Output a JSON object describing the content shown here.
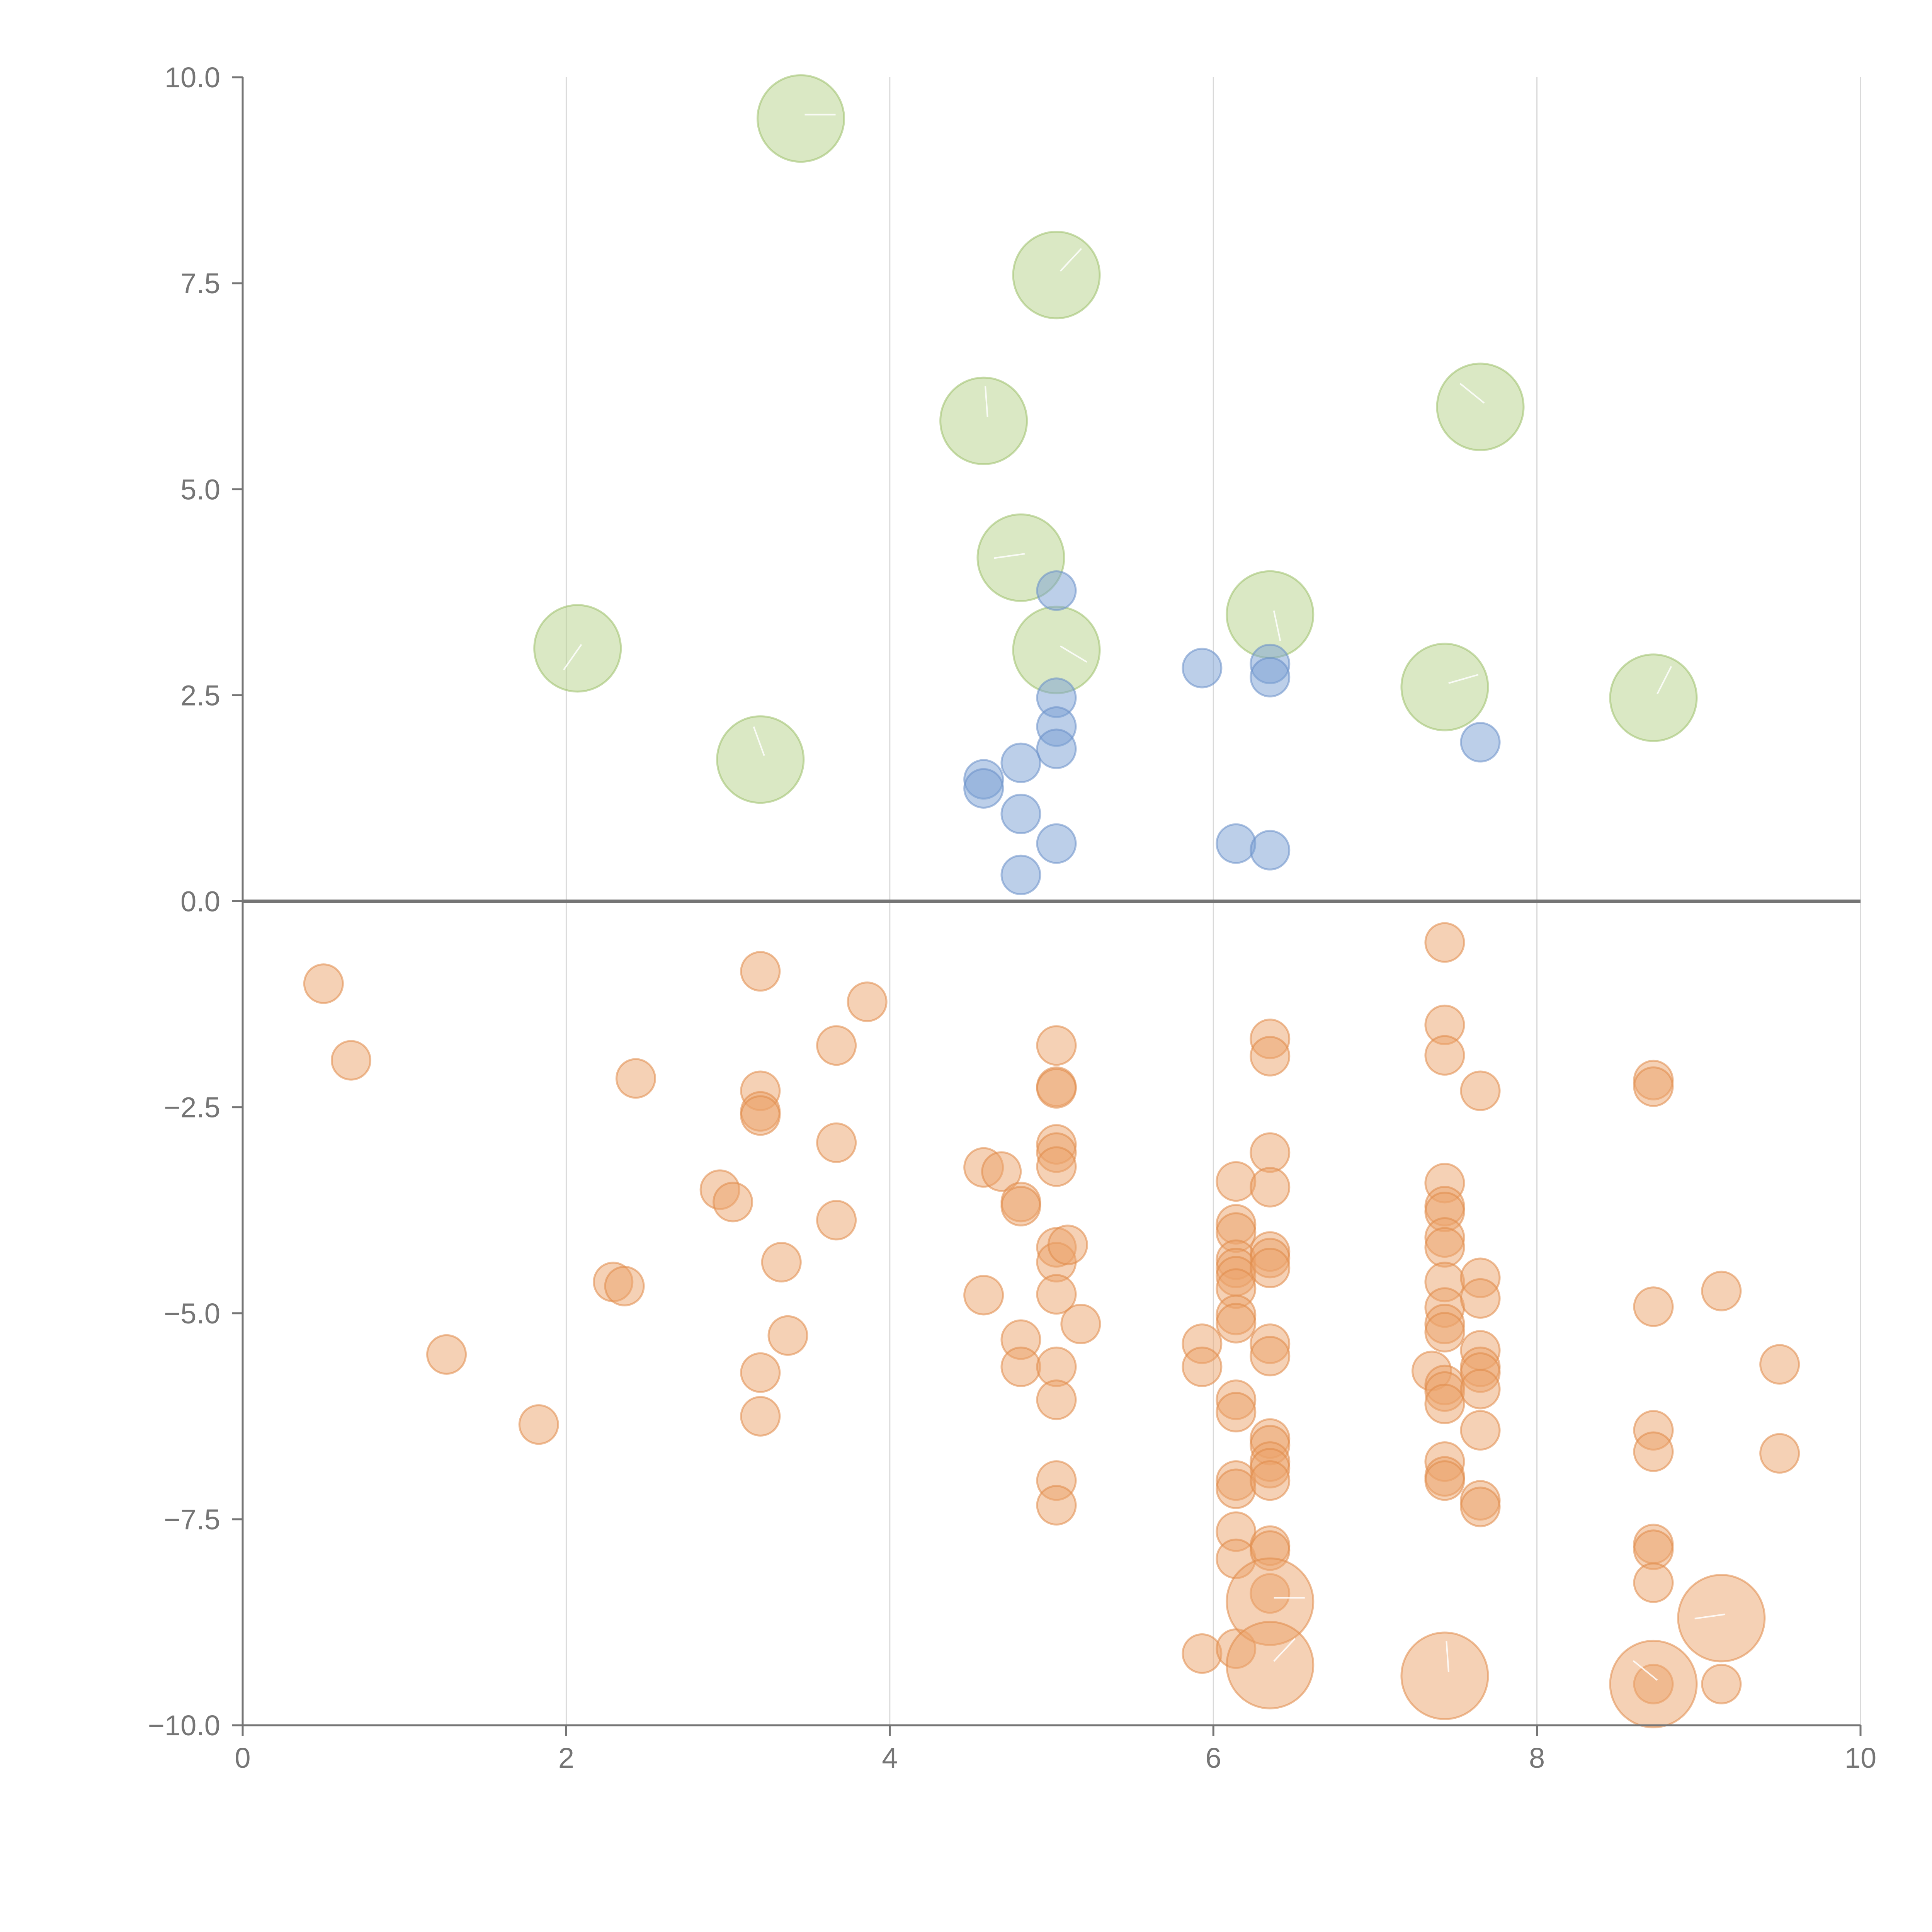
{
  "chart_data": {
    "type": "scatter",
    "title": "",
    "xlabel": "",
    "ylabel": "",
    "xlim": [
      0,
      10
    ],
    "ylim": [
      -10,
      10
    ],
    "x_ticks": [
      "0",
      "2",
      "4",
      "6",
      "8",
      "10"
    ],
    "y_ticks": [
      "−10.0",
      "−7.5",
      "−5.0",
      "−2.5",
      "0.0",
      "2.5",
      "5.0",
      "7.5",
      "10.0"
    ],
    "grid": "vertical",
    "legend": "none",
    "series": [
      {
        "name": "large-green",
        "color": "#b5d18a",
        "stroke": "#9cc06a",
        "size": "large",
        "points": [
          [
            3.45,
            9.5
          ],
          [
            5.03,
            7.6
          ],
          [
            4.58,
            5.83
          ],
          [
            7.65,
            6.0
          ],
          [
            4.81,
            4.17
          ],
          [
            2.07,
            3.07
          ],
          [
            6.35,
            3.48
          ],
          [
            5.03,
            3.05
          ],
          [
            7.43,
            2.6
          ],
          [
            8.72,
            2.47
          ],
          [
            3.2,
            1.72
          ]
        ]
      },
      {
        "name": "blue",
        "color": "#7a9fd4",
        "stroke": "#6a8fc9",
        "size": "small",
        "points": [
          [
            5.03,
            3.77
          ],
          [
            5.93,
            2.83
          ],
          [
            6.35,
            2.88
          ],
          [
            6.35,
            2.72
          ],
          [
            5.03,
            2.47
          ],
          [
            5.03,
            2.12
          ],
          [
            5.03,
            1.85
          ],
          [
            4.81,
            1.68
          ],
          [
            7.65,
            1.93
          ],
          [
            4.58,
            1.48
          ],
          [
            4.58,
            1.37
          ],
          [
            4.81,
            1.06
          ],
          [
            5.03,
            0.7
          ],
          [
            6.14,
            0.7
          ],
          [
            6.35,
            0.62
          ],
          [
            4.81,
            0.32
          ]
        ]
      },
      {
        "name": "orange",
        "color": "#eba46b",
        "stroke": "#e08b48",
        "size": "small",
        "points": [
          [
            0.5,
            -1.0
          ],
          [
            0.67,
            -1.93
          ],
          [
            1.26,
            -5.5
          ],
          [
            1.83,
            -6.35
          ],
          [
            2.29,
            -4.62
          ],
          [
            2.36,
            -4.67
          ],
          [
            2.43,
            -2.15
          ],
          [
            2.95,
            -3.5
          ],
          [
            3.03,
            -3.65
          ],
          [
            3.2,
            -0.85
          ],
          [
            3.2,
            -2.3
          ],
          [
            3.2,
            -2.55
          ],
          [
            3.2,
            -2.6
          ],
          [
            3.2,
            -5.72
          ],
          [
            3.2,
            -6.25
          ],
          [
            3.33,
            -4.38
          ],
          [
            3.37,
            -5.27
          ],
          [
            3.67,
            -1.75
          ],
          [
            3.67,
            -2.93
          ],
          [
            3.67,
            -3.87
          ],
          [
            3.86,
            -1.22
          ],
          [
            4.58,
            -3.23
          ],
          [
            4.58,
            -4.78
          ],
          [
            4.69,
            -3.28
          ],
          [
            4.81,
            -3.65
          ],
          [
            4.81,
            -3.7
          ],
          [
            4.81,
            -5.32
          ],
          [
            4.81,
            -5.65
          ],
          [
            5.03,
            -1.75
          ],
          [
            5.03,
            -2.25
          ],
          [
            5.03,
            -2.27
          ],
          [
            5.03,
            -2.95
          ],
          [
            5.03,
            -3.05
          ],
          [
            5.03,
            -3.22
          ],
          [
            5.03,
            -4.2
          ],
          [
            5.03,
            -4.38
          ],
          [
            5.03,
            -4.77
          ],
          [
            5.03,
            -5.65
          ],
          [
            5.03,
            -6.05
          ],
          [
            5.03,
            -7.03
          ],
          [
            5.03,
            -7.33
          ],
          [
            5.1,
            -4.17
          ],
          [
            5.18,
            -5.13
          ],
          [
            5.93,
            -5.37
          ],
          [
            5.93,
            -5.65
          ],
          [
            5.93,
            -9.13
          ],
          [
            6.14,
            -3.4
          ],
          [
            6.14,
            -3.92
          ],
          [
            6.14,
            -4.02
          ],
          [
            6.14,
            -4.35
          ],
          [
            6.14,
            -4.45
          ],
          [
            6.14,
            -4.55
          ],
          [
            6.14,
            -4.7
          ],
          [
            6.14,
            -5.02
          ],
          [
            6.14,
            -5.12
          ],
          [
            6.14,
            -6.05
          ],
          [
            6.14,
            -6.2
          ],
          [
            6.14,
            -7.03
          ],
          [
            6.14,
            -7.13
          ],
          [
            6.14,
            -7.65
          ],
          [
            6.14,
            -7.98
          ],
          [
            6.14,
            -9.07
          ],
          [
            6.35,
            -1.67
          ],
          [
            6.35,
            -1.88
          ],
          [
            6.35,
            -3.05
          ],
          [
            6.35,
            -3.47
          ],
          [
            6.35,
            -4.25
          ],
          [
            6.35,
            -4.33
          ],
          [
            6.35,
            -4.45
          ],
          [
            6.35,
            -5.37
          ],
          [
            6.35,
            -5.52
          ],
          [
            6.35,
            -6.52
          ],
          [
            6.35,
            -6.6
          ],
          [
            6.35,
            -6.8
          ],
          [
            6.35,
            -6.88
          ],
          [
            6.35,
            -7.03
          ],
          [
            6.35,
            -7.82
          ],
          [
            6.35,
            -7.88
          ],
          [
            6.35,
            -8.4
          ],
          [
            7.35,
            -5.7
          ],
          [
            7.43,
            -0.5
          ],
          [
            7.43,
            -1.5
          ],
          [
            7.43,
            -1.87
          ],
          [
            7.43,
            -3.42
          ],
          [
            7.43,
            -3.7
          ],
          [
            7.43,
            -3.77
          ],
          [
            7.43,
            -4.08
          ],
          [
            7.43,
            -4.2
          ],
          [
            7.43,
            -4.62
          ],
          [
            7.43,
            -4.93
          ],
          [
            7.43,
            -5.13
          ],
          [
            7.43,
            -5.23
          ],
          [
            7.43,
            -5.87
          ],
          [
            7.43,
            -5.95
          ],
          [
            7.43,
            -6.1
          ],
          [
            7.43,
            -6.8
          ],
          [
            7.43,
            -6.98
          ],
          [
            7.43,
            -7.03
          ],
          [
            7.65,
            -2.3
          ],
          [
            7.65,
            -4.57
          ],
          [
            7.65,
            -4.82
          ],
          [
            7.65,
            -5.45
          ],
          [
            7.65,
            -5.65
          ],
          [
            7.65,
            -5.72
          ],
          [
            7.65,
            -5.92
          ],
          [
            7.65,
            -6.42
          ],
          [
            7.65,
            -7.27
          ],
          [
            7.65,
            -7.35
          ],
          [
            8.72,
            -2.17
          ],
          [
            8.72,
            -2.25
          ],
          [
            8.72,
            -4.92
          ],
          [
            8.72,
            -6.42
          ],
          [
            8.72,
            -6.68
          ],
          [
            8.72,
            -7.8
          ],
          [
            8.72,
            -7.87
          ],
          [
            8.72,
            -8.27
          ],
          [
            8.72,
            -9.5
          ],
          [
            9.14,
            -4.73
          ],
          [
            9.14,
            -9.5
          ],
          [
            9.5,
            -5.62
          ],
          [
            9.5,
            -6.7
          ]
        ]
      },
      {
        "name": "large-orange",
        "color": "#eba46b",
        "stroke": "#e08b48",
        "size": "large",
        "points": [
          [
            6.35,
            -8.5
          ],
          [
            6.35,
            -9.27
          ],
          [
            7.43,
            -9.4
          ],
          [
            8.72,
            -9.5
          ],
          [
            9.14,
            -8.7
          ]
        ]
      }
    ]
  }
}
